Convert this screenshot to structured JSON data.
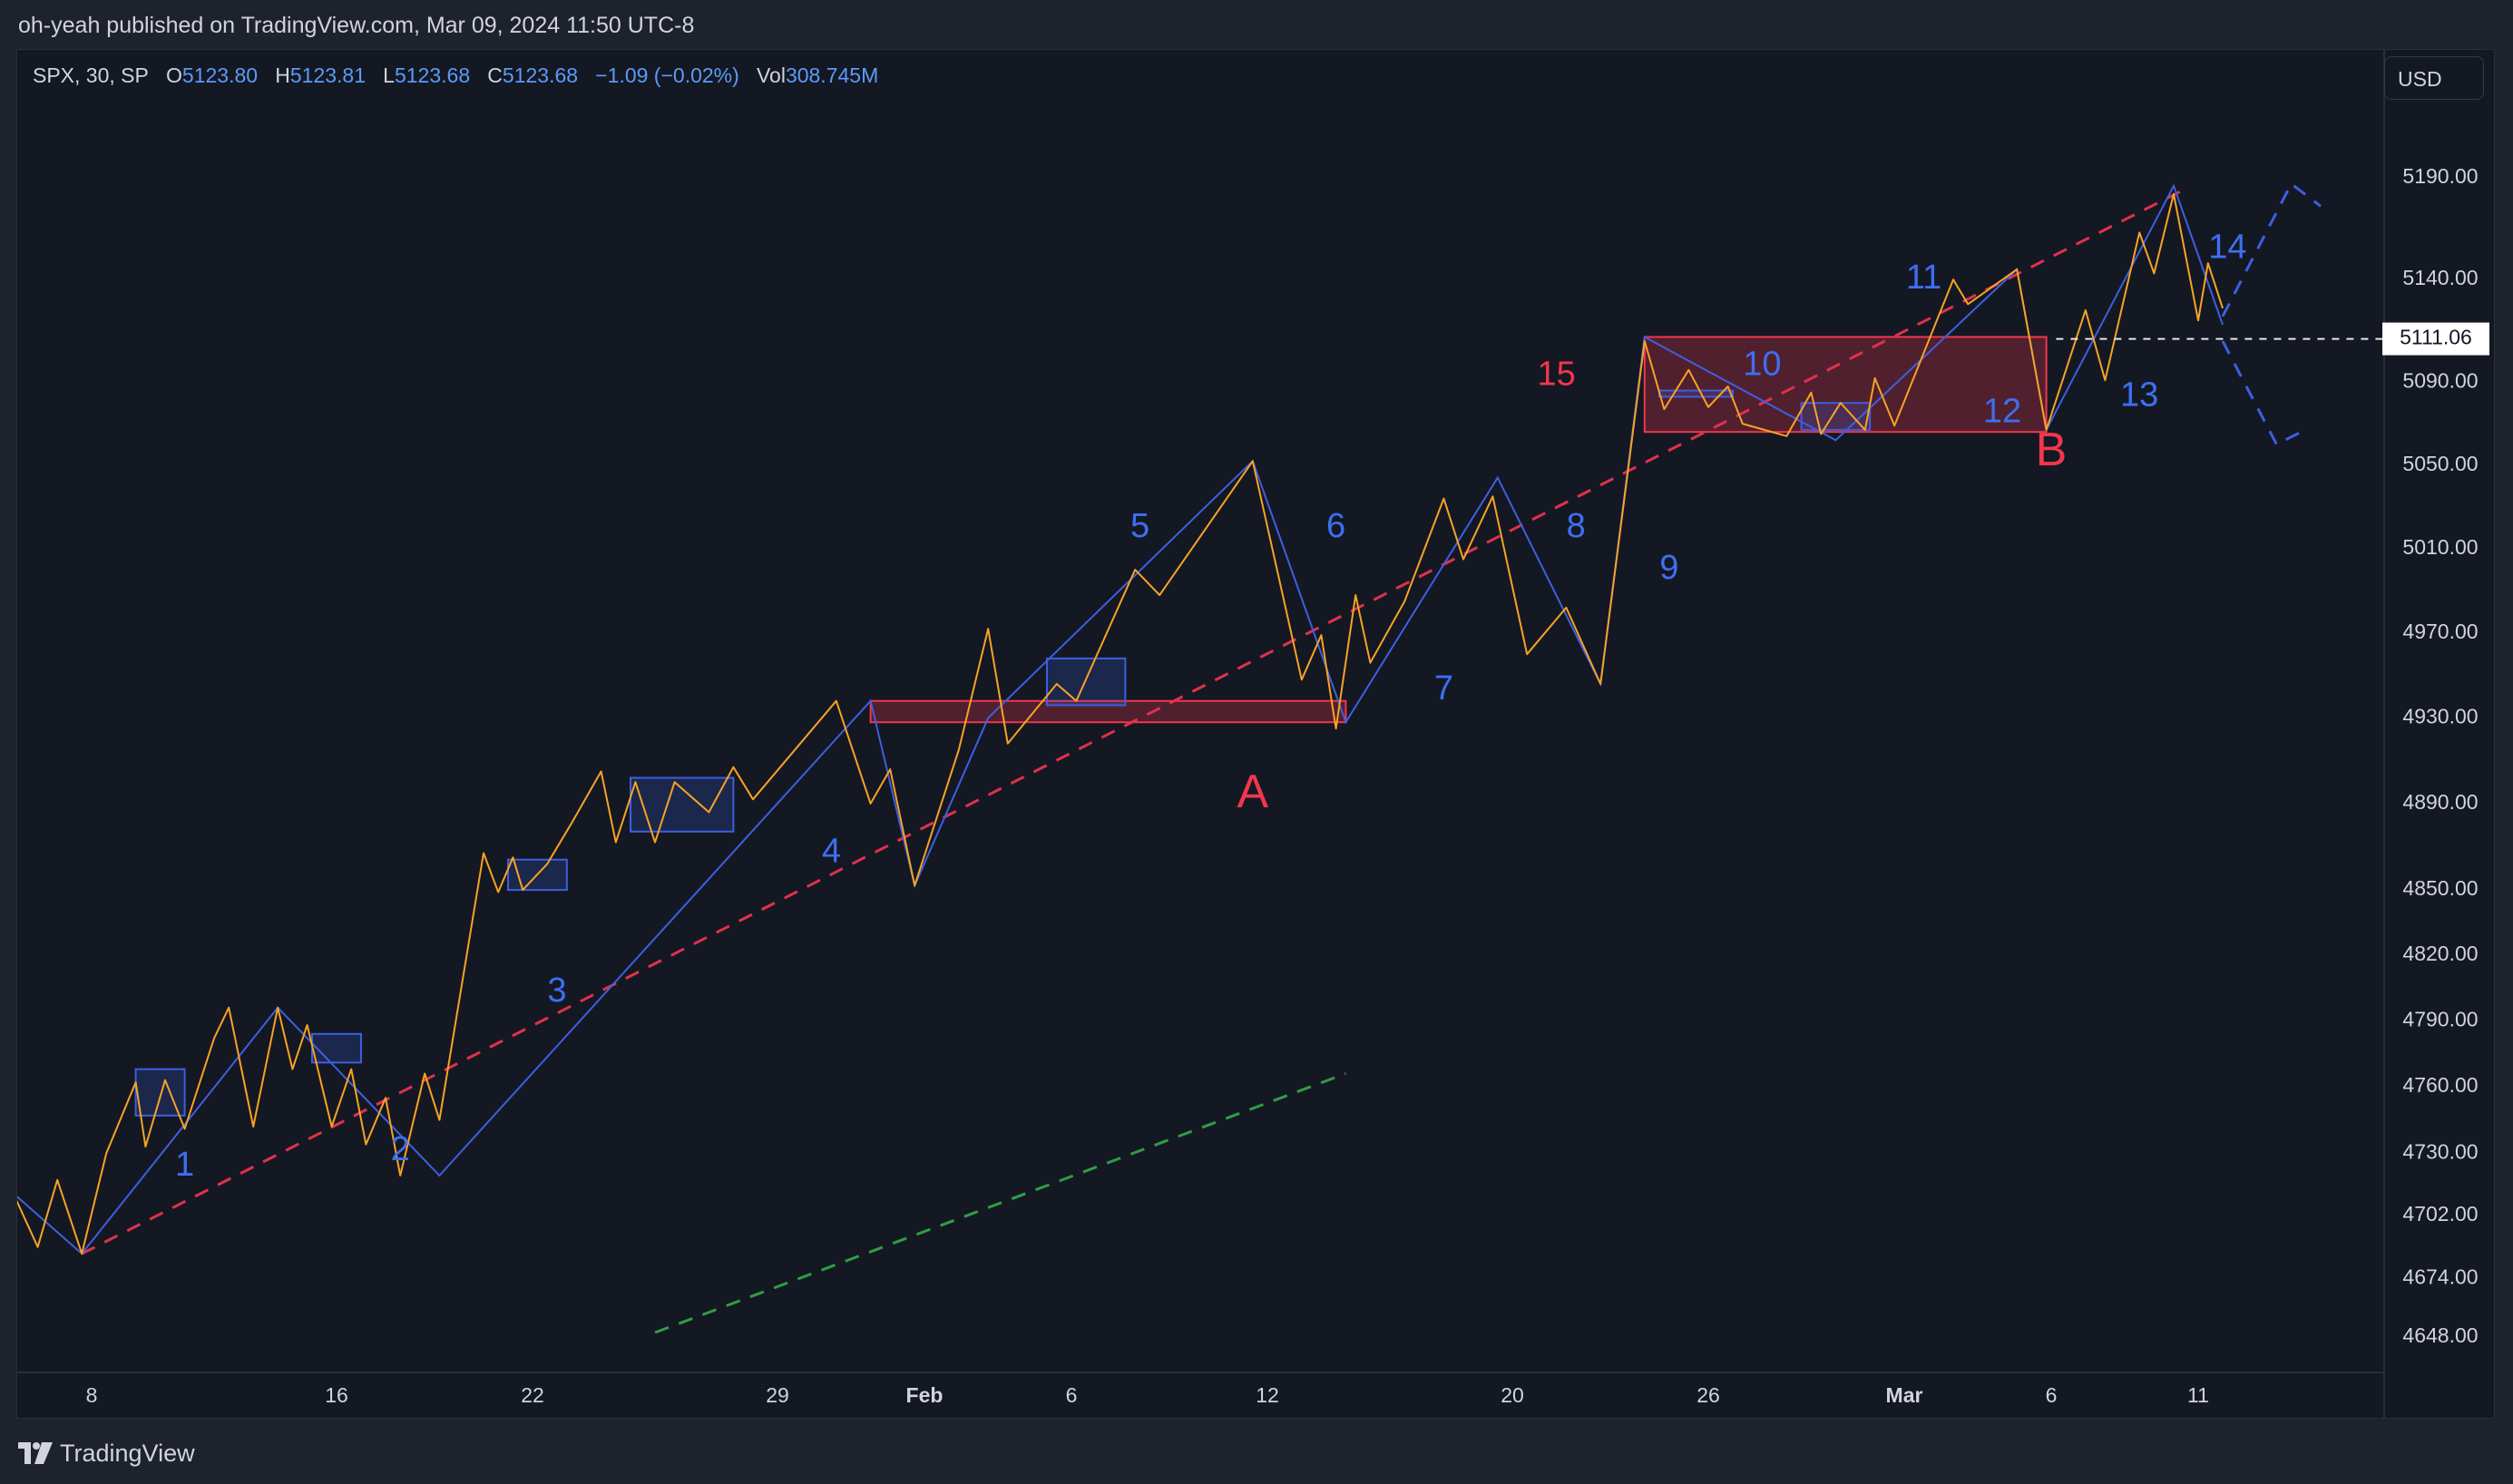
{
  "header": {
    "published_text": "oh-yeah published on TradingView.com, Mar 09, 2024 11:50 UTC-8"
  },
  "legend": {
    "symbol": "SPX, 30, SP",
    "open_label": "O",
    "open": "5123.80",
    "high_label": "H",
    "high": "5123.81",
    "low_label": "L",
    "low": "5123.68",
    "close_label": "C",
    "close": "5123.68",
    "change": "−1.09 (−0.02%)",
    "vol_label": "Vol",
    "vol": "308.745M"
  },
  "currency": "USD",
  "footer": {
    "brand": "TradingView"
  },
  "colors": {
    "price_line": "#f7a325",
    "wave_line": "#3d5fe0",
    "label_blue": "#3d6ff0",
    "label_red": "#f2364d",
    "trend_red": "#e0314d",
    "trend_green": "#2f9e44",
    "zone_red": "#f2364d",
    "zone_blue": "#3d5fe0"
  },
  "chart_data": {
    "type": "line",
    "title": "",
    "symbol": "SPX",
    "interval": "30",
    "y_ticks": [
      4648,
      4674,
      4702,
      4730,
      4760,
      4790,
      4820,
      4850,
      4890,
      4930,
      4970,
      5010,
      5050,
      5090,
      5140,
      5190
    ],
    "y_tick_labels": [
      "4648.00",
      "4674.00",
      "4702.00",
      "4730.00",
      "4760.00",
      "4790.00",
      "4820.00",
      "4850.00",
      "4890.00",
      "4930.00",
      "4970.00",
      "5010.00",
      "5050.00",
      "5090.00",
      "5140.00",
      "5190.00"
    ],
    "last_price_label": "5111.06",
    "last_price": 5111.06,
    "x_ticks": [
      {
        "label": "8",
        "pos": 0.5
      },
      {
        "label": "16",
        "pos": 5.5
      },
      {
        "label": "22",
        "pos": 9.5
      },
      {
        "label": "29",
        "pos": 14.5
      },
      {
        "label": "Feb",
        "pos": 17.5
      },
      {
        "label": "6",
        "pos": 20.5
      },
      {
        "label": "12",
        "pos": 24.5
      },
      {
        "label": "20",
        "pos": 29.5
      },
      {
        "label": "26",
        "pos": 33.5
      },
      {
        "label": "Mar",
        "pos": 37.5
      },
      {
        "label": "6",
        "pos": 40.5
      },
      {
        "label": "11",
        "pos": 43.5
      }
    ],
    "x_range": [
      -1,
      49
    ],
    "grid": false,
    "price_series": [
      [
        -1.1,
        4712
      ],
      [
        -0.6,
        4688
      ],
      [
        -0.2,
        4718
      ],
      [
        0.3,
        4685
      ],
      [
        0.8,
        4730
      ],
      [
        1.4,
        4762
      ],
      [
        1.6,
        4733
      ],
      [
        2.0,
        4763
      ],
      [
        2.4,
        4741
      ],
      [
        3.0,
        4782
      ],
      [
        3.3,
        4796
      ],
      [
        3.8,
        4742
      ],
      [
        4.3,
        4796
      ],
      [
        4.6,
        4768
      ],
      [
        4.9,
        4788
      ],
      [
        5.4,
        4742
      ],
      [
        5.8,
        4768
      ],
      [
        6.1,
        4734
      ],
      [
        6.5,
        4755
      ],
      [
        6.8,
        4720
      ],
      [
        7.3,
        4766
      ],
      [
        7.6,
        4745
      ],
      [
        8.5,
        4867
      ],
      [
        8.8,
        4849
      ],
      [
        9.1,
        4865
      ],
      [
        9.3,
        4850
      ],
      [
        9.8,
        4862
      ],
      [
        10.3,
        4881
      ],
      [
        10.9,
        4905
      ],
      [
        11.2,
        4872
      ],
      [
        11.6,
        4900
      ],
      [
        12.0,
        4872
      ],
      [
        12.4,
        4900
      ],
      [
        13.1,
        4886
      ],
      [
        13.6,
        4907
      ],
      [
        14.0,
        4892
      ],
      [
        15.7,
        4938
      ],
      [
        16.4,
        4890
      ],
      [
        16.8,
        4906
      ],
      [
        17.3,
        4852
      ],
      [
        18.2,
        4915
      ],
      [
        18.8,
        4972
      ],
      [
        19.2,
        4918
      ],
      [
        20.2,
        4946
      ],
      [
        20.6,
        4938
      ],
      [
        21.8,
        5000
      ],
      [
        22.3,
        4988
      ],
      [
        24.2,
        5052
      ],
      [
        25.2,
        4948
      ],
      [
        25.6,
        4969
      ],
      [
        25.9,
        4925
      ],
      [
        26.3,
        4988
      ],
      [
        26.6,
        4956
      ],
      [
        27.3,
        4985
      ],
      [
        28.1,
        5034
      ],
      [
        28.5,
        5005
      ],
      [
        29.1,
        5035
      ],
      [
        29.8,
        4960
      ],
      [
        30.6,
        4982
      ],
      [
        31.3,
        4946
      ],
      [
        32.2,
        5110
      ],
      [
        32.6,
        5077
      ],
      [
        33.1,
        5096
      ],
      [
        33.5,
        5078
      ],
      [
        33.9,
        5088
      ],
      [
        34.2,
        5070
      ],
      [
        35.1,
        5064
      ],
      [
        35.6,
        5085
      ],
      [
        35.8,
        5065
      ],
      [
        36.2,
        5080
      ],
      [
        36.7,
        5067
      ],
      [
        36.9,
        5092
      ],
      [
        37.3,
        5069
      ],
      [
        38.5,
        5140
      ],
      [
        38.8,
        5128
      ],
      [
        39.8,
        5145
      ],
      [
        40.4,
        5067
      ],
      [
        41.2,
        5125
      ],
      [
        41.6,
        5091
      ],
      [
        42.3,
        5163
      ],
      [
        42.6,
        5143
      ],
      [
        43.0,
        5182
      ],
      [
        43.5,
        5120
      ],
      [
        43.7,
        5148
      ],
      [
        44.0,
        5126
      ]
    ],
    "wave_series": [
      [
        -1.1,
        4712
      ],
      [
        0.3,
        4685
      ],
      [
        4.3,
        4796
      ],
      [
        7.6,
        4720
      ],
      [
        16.4,
        4938
      ],
      [
        17.3,
        4852
      ],
      [
        18.8,
        4930
      ],
      [
        24.2,
        5052
      ],
      [
        26.1,
        4928
      ],
      [
        29.2,
        5044
      ],
      [
        31.3,
        4946
      ],
      [
        32.2,
        5112
      ],
      [
        36.1,
        5062
      ],
      [
        39.8,
        5145
      ],
      [
        40.4,
        5067
      ],
      [
        43.0,
        5186
      ],
      [
        44.0,
        5118
      ]
    ],
    "projection_series": [
      [
        44.0,
        5122
      ],
      [
        45.4,
        5187
      ],
      [
        46.0,
        5176
      ]
    ],
    "projection_series_2": [
      [
        44.0,
        5110
      ],
      [
        45.1,
        5060
      ],
      [
        45.6,
        5066
      ]
    ],
    "trend_red": [
      [
        0.3,
        4685
      ],
      [
        43.2,
        5184
      ]
    ],
    "trend_green": [
      [
        12.0,
        4650
      ],
      [
        26.1,
        4766
      ]
    ],
    "zones": [
      {
        "type": "red",
        "x1": 16.4,
        "x2": 26.1,
        "y1": 4928,
        "y2": 4938
      },
      {
        "type": "red",
        "x1": 32.2,
        "x2": 40.4,
        "y1": 5066,
        "y2": 5112
      },
      {
        "type": "blue",
        "x1": 1.4,
        "x2": 2.4,
        "y1": 4747,
        "y2": 4768
      },
      {
        "type": "blue",
        "x1": 5.0,
        "x2": 6.0,
        "y1": 4771,
        "y2": 4784
      },
      {
        "type": "blue",
        "x1": 9.0,
        "x2": 10.2,
        "y1": 4850,
        "y2": 4864
      },
      {
        "type": "blue",
        "x1": 11.5,
        "x2": 13.6,
        "y1": 4877,
        "y2": 4902
      },
      {
        "type": "blue",
        "x1": 20.0,
        "x2": 21.6,
        "y1": 4936,
        "y2": 4958
      },
      {
        "type": "blue",
        "x1": 32.5,
        "x2": 34.0,
        "y1": 5083,
        "y2": 5086
      },
      {
        "type": "blue",
        "x1": 35.4,
        "x2": 36.8,
        "y1": 5067,
        "y2": 5080
      }
    ],
    "wave_labels": [
      {
        "text": "1",
        "x": 2.4,
        "y": 4724,
        "color": "blue"
      },
      {
        "text": "2",
        "x": 6.8,
        "y": 4731,
        "color": "blue"
      },
      {
        "text": "3",
        "x": 10.0,
        "y": 4803,
        "color": "blue"
      },
      {
        "text": "4",
        "x": 15.6,
        "y": 4867,
        "color": "blue"
      },
      {
        "text": "5",
        "x": 21.9,
        "y": 5020,
        "color": "blue"
      },
      {
        "text": "6",
        "x": 25.9,
        "y": 5020,
        "color": "blue"
      },
      {
        "text": "7",
        "x": 28.1,
        "y": 4943,
        "color": "blue"
      },
      {
        "text": "8",
        "x": 30.8,
        "y": 5020,
        "color": "blue"
      },
      {
        "text": "9",
        "x": 32.7,
        "y": 5000,
        "color": "blue"
      },
      {
        "text": "10",
        "x": 34.6,
        "y": 5098,
        "color": "blue"
      },
      {
        "text": "11",
        "x": 37.9,
        "y": 5140,
        "color": "blue"
      },
      {
        "text": "12",
        "x": 39.5,
        "y": 5075,
        "color": "blue"
      },
      {
        "text": "13",
        "x": 42.3,
        "y": 5083,
        "color": "blue"
      },
      {
        "text": "14",
        "x": 44.1,
        "y": 5155,
        "color": "blue"
      },
      {
        "text": "15",
        "x": 30.4,
        "y": 5093,
        "color": "red"
      },
      {
        "text": "A",
        "x": 24.2,
        "y": 4894,
        "color": "red",
        "size": "large"
      },
      {
        "text": "B",
        "x": 40.5,
        "y": 5056,
        "color": "red",
        "size": "large"
      }
    ]
  }
}
